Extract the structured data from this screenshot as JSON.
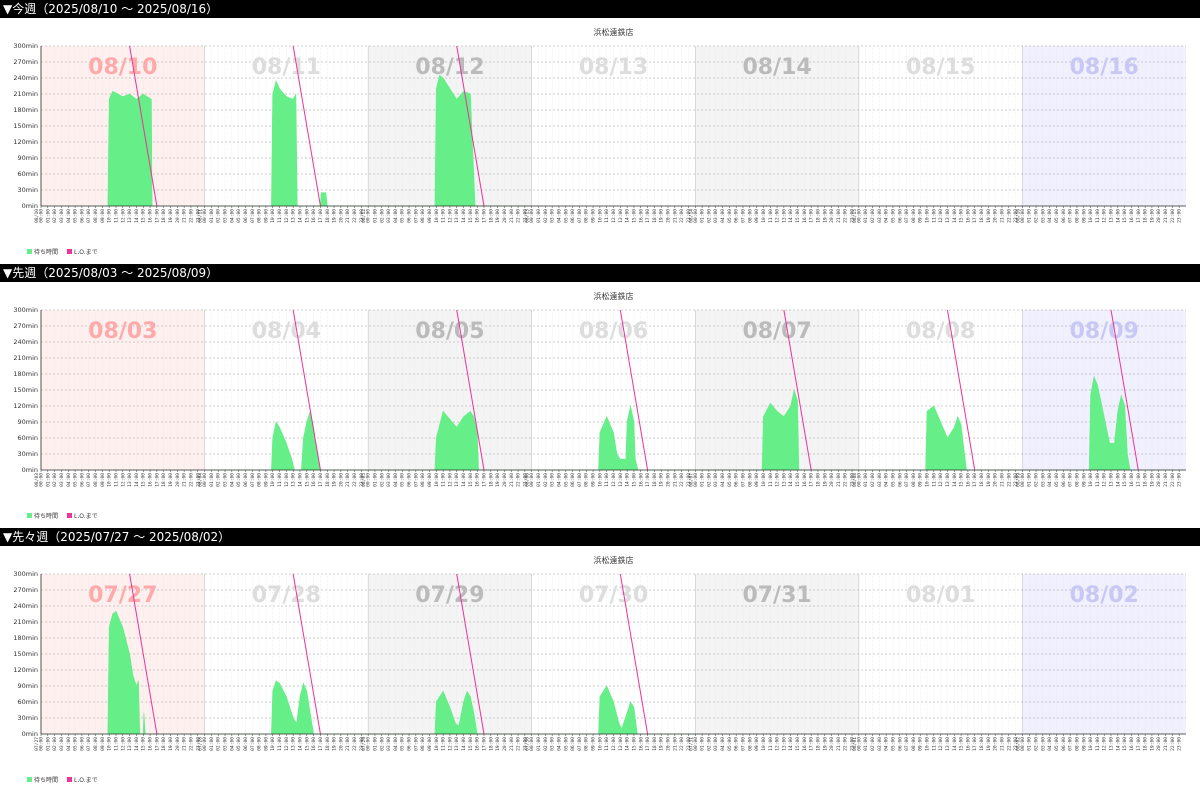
{
  "weeks": [
    {
      "header": "▼今週（2025/08/10 〜 2025/08/16）"
    },
    {
      "header": "▼先週（2025/08/03 〜 2025/08/09）"
    },
    {
      "header": "▼先々週（2025/07/27 〜 2025/08/02）"
    }
  ],
  "colors": {
    "wait_fill": "#66ee88",
    "lo_line": "#ee3399",
    "sun_bg": "#fff0f0",
    "sat_bg": "#f0f0ff",
    "gray_bg": "#f4f4f4",
    "white_bg": "#ffffff",
    "sun_label": "#ffaaaa",
    "sat_label": "#c8c8f4",
    "gray_label": "#bbbbbb",
    "light_label": "#dddddd"
  },
  "chart_data": [
    {
      "type": "area",
      "title": "浜松遠鉄店",
      "ylim": [
        0,
        300
      ],
      "yticks": [
        "0min",
        "30min",
        "60min",
        "90min",
        "120min",
        "150min",
        "180min",
        "210min",
        "240min",
        "270min",
        "300min"
      ],
      "grid": true,
      "legend": {
        "placement": "bottom-left",
        "entries": [
          "待ち時間",
          "L.O.まで"
        ]
      },
      "days": [
        {
          "label": "08/10",
          "date_tick": "08/10",
          "weekday": "sun",
          "wait": [
            [
              0,
              0
            ],
            [
              9.8,
              0
            ],
            [
              10,
              200
            ],
            [
              10.5,
              215
            ],
            [
              11,
              212
            ],
            [
              12,
              205
            ],
            [
              13,
              210
            ],
            [
              14,
              200
            ],
            [
              15,
              210
            ],
            [
              15.6,
              205
            ],
            [
              16.2,
              200
            ],
            [
              16.3,
              0
            ],
            [
              24,
              0
            ]
          ]
        },
        {
          "label": "08/11",
          "date_tick": "08/11",
          "weekday": "mon",
          "wait": [
            [
              0,
              0
            ],
            [
              9.8,
              0
            ],
            [
              10,
              210
            ],
            [
              10.5,
              235
            ],
            [
              11,
              220
            ],
            [
              12,
              205
            ],
            [
              13,
              200
            ],
            [
              13.4,
              210
            ],
            [
              13.6,
              0
            ],
            [
              17,
              0
            ],
            [
              17.1,
              25
            ],
            [
              17.8,
              25
            ],
            [
              18,
              0
            ],
            [
              24,
              0
            ]
          ]
        },
        {
          "label": "08/12",
          "date_tick": "08/12",
          "weekday": "tue",
          "wait": [
            [
              0,
              0
            ],
            [
              9.8,
              0
            ],
            [
              10,
              220
            ],
            [
              10.5,
              245
            ],
            [
              11,
              240
            ],
            [
              12,
              220
            ],
            [
              13,
              200
            ],
            [
              14,
              215
            ],
            [
              15,
              210
            ],
            [
              15.7,
              0
            ],
            [
              24,
              0
            ]
          ]
        },
        {
          "label": "08/13",
          "date_tick": "08/13",
          "weekday": "wed",
          "wait": []
        },
        {
          "label": "08/14",
          "date_tick": "08/14",
          "weekday": "thu",
          "wait": []
        },
        {
          "label": "08/15",
          "date_tick": "08/15",
          "weekday": "fri",
          "wait": []
        },
        {
          "label": "08/16",
          "date_tick": "08/16",
          "weekday": "sat",
          "wait": []
        }
      ],
      "lo_lines": [
        {
          "day": 0,
          "start_hour": 13,
          "end_hour": 17
        },
        {
          "day": 1,
          "start_hour": 13,
          "end_hour": 17
        },
        {
          "day": 2,
          "start_hour": 13,
          "end_hour": 17
        }
      ]
    },
    {
      "type": "area",
      "title": "浜松遠鉄店",
      "ylim": [
        0,
        300
      ],
      "yticks": [
        "0min",
        "30min",
        "60min",
        "90min",
        "120min",
        "150min",
        "180min",
        "210min",
        "240min",
        "270min",
        "300min"
      ],
      "grid": true,
      "legend": {
        "placement": "bottom-left",
        "entries": [
          "待ち時間",
          "L.O.まで"
        ]
      },
      "days": [
        {
          "label": "08/03",
          "date_tick": "08/03",
          "weekday": "sun",
          "wait": []
        },
        {
          "label": "08/04",
          "date_tick": "08/04",
          "weekday": "mon",
          "wait": [
            [
              0,
              0
            ],
            [
              9.8,
              0
            ],
            [
              10,
              60
            ],
            [
              10.5,
              90
            ],
            [
              11,
              80
            ],
            [
              12,
              50
            ],
            [
              12.8,
              20
            ],
            [
              13.2,
              0
            ],
            [
              14.2,
              0
            ],
            [
              14.5,
              60
            ],
            [
              15,
              90
            ],
            [
              15.5,
              110
            ],
            [
              16,
              80
            ],
            [
              16.5,
              30
            ],
            [
              17,
              0
            ],
            [
              24,
              0
            ]
          ]
        },
        {
          "label": "08/05",
          "date_tick": "08/05",
          "weekday": "tue",
          "wait": [
            [
              0,
              0
            ],
            [
              9.8,
              0
            ],
            [
              10,
              60
            ],
            [
              11,
              110
            ],
            [
              12,
              95
            ],
            [
              13,
              80
            ],
            [
              14,
              100
            ],
            [
              15,
              110
            ],
            [
              15.5,
              100
            ],
            [
              16,
              70
            ],
            [
              16.2,
              0
            ],
            [
              24,
              0
            ]
          ]
        },
        {
          "label": "08/06",
          "date_tick": "08/06",
          "weekday": "wed",
          "wait": [
            [
              0,
              0
            ],
            [
              9.8,
              0
            ],
            [
              10,
              70
            ],
            [
              11,
              100
            ],
            [
              12,
              70
            ],
            [
              12.5,
              30
            ],
            [
              13,
              20
            ],
            [
              13.8,
              20
            ],
            [
              14,
              90
            ],
            [
              14.5,
              120
            ],
            [
              15,
              90
            ],
            [
              15.2,
              20
            ],
            [
              15.6,
              0
            ],
            [
              24,
              0
            ]
          ]
        },
        {
          "label": "08/07",
          "date_tick": "08/07",
          "weekday": "thu",
          "wait": [
            [
              0,
              0
            ],
            [
              9.8,
              0
            ],
            [
              10,
              100
            ],
            [
              11,
              125
            ],
            [
              12,
              110
            ],
            [
              13,
              100
            ],
            [
              14,
              120
            ],
            [
              14.5,
              150
            ],
            [
              15,
              130
            ],
            [
              15.2,
              0
            ],
            [
              24,
              0
            ]
          ]
        },
        {
          "label": "08/08",
          "date_tick": "08/08",
          "weekday": "fri",
          "wait": [
            [
              0,
              0
            ],
            [
              9.8,
              0
            ],
            [
              10,
              110
            ],
            [
              11,
              120
            ],
            [
              12,
              90
            ],
            [
              13,
              60
            ],
            [
              14,
              80
            ],
            [
              14.5,
              100
            ],
            [
              15,
              85
            ],
            [
              15.8,
              0
            ],
            [
              24,
              0
            ]
          ]
        },
        {
          "label": "08/09",
          "date_tick": "08/09",
          "weekday": "sat",
          "wait": [
            [
              0,
              0
            ],
            [
              9.8,
              0
            ],
            [
              10,
              140
            ],
            [
              10.5,
              175
            ],
            [
              11,
              160
            ],
            [
              12,
              100
            ],
            [
              12.8,
              50
            ],
            [
              13.5,
              50
            ],
            [
              14,
              110
            ],
            [
              14.5,
              140
            ],
            [
              15,
              120
            ],
            [
              15.4,
              30
            ],
            [
              15.8,
              0
            ],
            [
              24,
              0
            ]
          ]
        }
      ],
      "lo_lines": [
        {
          "day": 1,
          "start_hour": 13,
          "end_hour": 17
        },
        {
          "day": 2,
          "start_hour": 13,
          "end_hour": 17
        },
        {
          "day": 3,
          "start_hour": 13,
          "end_hour": 17
        },
        {
          "day": 4,
          "start_hour": 13,
          "end_hour": 17
        },
        {
          "day": 5,
          "start_hour": 13,
          "end_hour": 17
        },
        {
          "day": 6,
          "start_hour": 13,
          "end_hour": 17
        }
      ]
    },
    {
      "type": "area",
      "title": "浜松遠鉄店",
      "ylim": [
        0,
        300
      ],
      "yticks": [
        "0min",
        "30min",
        "60min",
        "90min",
        "120min",
        "150min",
        "180min",
        "210min",
        "240min",
        "270min",
        "300min"
      ],
      "grid": true,
      "legend": {
        "placement": "bottom-left",
        "entries": [
          "待ち時間",
          "L.O.まで"
        ]
      },
      "days": [
        {
          "label": "07/27",
          "date_tick": "07/27",
          "weekday": "sun",
          "wait": [
            [
              0,
              0
            ],
            [
              9.8,
              0
            ],
            [
              10,
              200
            ],
            [
              10.5,
              225
            ],
            [
              11,
              230
            ],
            [
              12,
              200
            ],
            [
              13,
              150
            ],
            [
              13.5,
              110
            ],
            [
              14,
              90
            ],
            [
              14.3,
              100
            ],
            [
              14.5,
              0
            ],
            [
              15,
              0
            ],
            [
              15.1,
              40
            ],
            [
              15.3,
              0
            ],
            [
              24,
              0
            ]
          ]
        },
        {
          "label": "07/28",
          "date_tick": "07/28",
          "weekday": "mon",
          "wait": [
            [
              0,
              0
            ],
            [
              9.8,
              0
            ],
            [
              10,
              80
            ],
            [
              10.5,
              100
            ],
            [
              11,
              95
            ],
            [
              12,
              70
            ],
            [
              13,
              30
            ],
            [
              13.5,
              20
            ],
            [
              14,
              70
            ],
            [
              14.5,
              95
            ],
            [
              15,
              80
            ],
            [
              15.5,
              40
            ],
            [
              16,
              0
            ],
            [
              24,
              0
            ]
          ]
        },
        {
          "label": "07/29",
          "date_tick": "07/29",
          "weekday": "tue",
          "wait": [
            [
              0,
              0
            ],
            [
              9.8,
              0
            ],
            [
              10,
              60
            ],
            [
              11,
              80
            ],
            [
              12,
              50
            ],
            [
              12.8,
              20
            ],
            [
              13.3,
              15
            ],
            [
              14,
              60
            ],
            [
              14.5,
              80
            ],
            [
              15,
              70
            ],
            [
              15.5,
              40
            ],
            [
              16,
              0
            ],
            [
              24,
              0
            ]
          ]
        },
        {
          "label": "07/30",
          "date_tick": "07/30",
          "weekday": "wed",
          "wait": [
            [
              0,
              0
            ],
            [
              9.8,
              0
            ],
            [
              10,
              70
            ],
            [
              11,
              90
            ],
            [
              12,
              60
            ],
            [
              12.8,
              20
            ],
            [
              13.2,
              10
            ],
            [
              14,
              40
            ],
            [
              14.5,
              60
            ],
            [
              15,
              50
            ],
            [
              15.5,
              0
            ],
            [
              24,
              0
            ]
          ]
        },
        {
          "label": "07/31",
          "date_tick": "07/31",
          "weekday": "thu",
          "wait": []
        },
        {
          "label": "08/01",
          "date_tick": "08/01",
          "weekday": "fri",
          "wait": []
        },
        {
          "label": "08/02",
          "date_tick": "08/02",
          "weekday": "sat",
          "wait": []
        }
      ],
      "lo_lines": [
        {
          "day": 0,
          "start_hour": 13,
          "end_hour": 17
        },
        {
          "day": 1,
          "start_hour": 13,
          "end_hour": 17
        },
        {
          "day": 2,
          "start_hour": 13,
          "end_hour": 17
        },
        {
          "day": 3,
          "start_hour": 13,
          "end_hour": 17
        }
      ]
    }
  ]
}
